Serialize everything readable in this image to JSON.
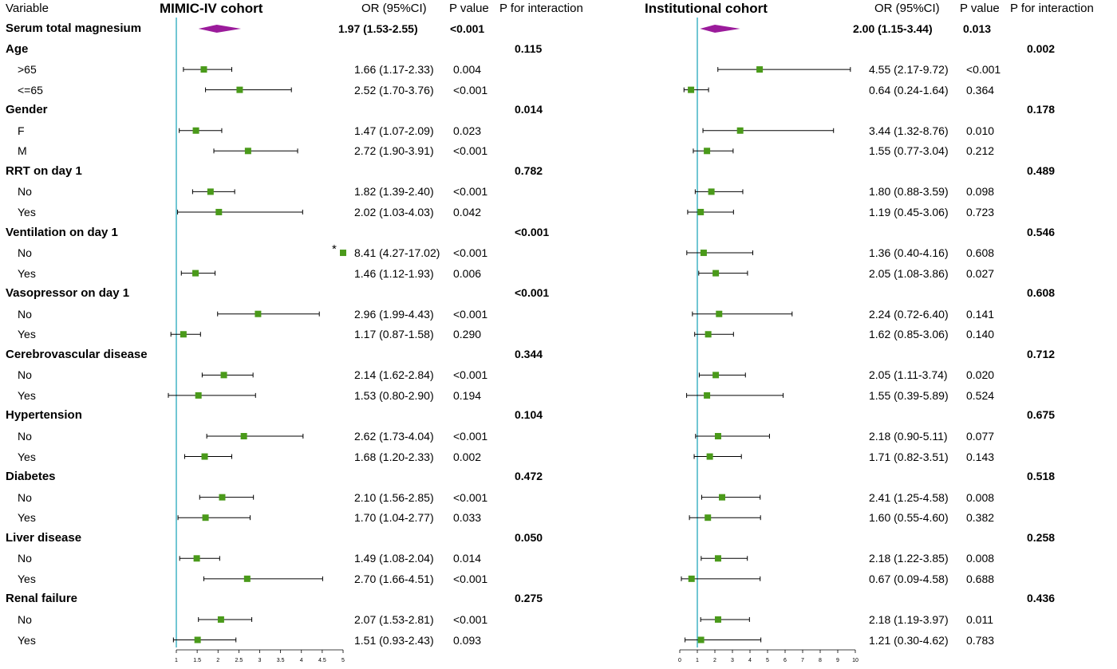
{
  "headers": {
    "variable": "Variable",
    "left_cohort": "MIMIC-IV cohort",
    "right_cohort": "Institutional cohort",
    "or": "OR (95%CI)",
    "pvalue": "P value",
    "pint": "P for interaction"
  },
  "colors": {
    "ref_line": "#4db8c8",
    "square": "#4a9a1a",
    "diamond": "#9b1b9b",
    "ci": "#000000"
  },
  "annotation": {
    "star": "*"
  },
  "chart_data": [
    {
      "type": "forest",
      "title": "MIMIC-IV cohort",
      "ref": 1,
      "xlim": [
        1,
        5
      ],
      "ticks": [
        1,
        1.5,
        2,
        2.5,
        3,
        3.5,
        4,
        4.5,
        5
      ],
      "tick_labels": [
        "1",
        "1.5",
        "2",
        "2.5",
        "3",
        "3.5",
        "4",
        "4.5",
        "5"
      ],
      "rows": [
        {
          "label": "Serum total magnesium",
          "kind": "overall",
          "or": 1.97,
          "lo": 1.53,
          "hi": 2.55,
          "ci_text": "1.97 (1.53-2.55)",
          "p": "<0.001",
          "p_int": ""
        },
        {
          "label": "Age",
          "kind": "group",
          "p_int": "0.115"
        },
        {
          "label": ">65",
          "kind": "sub",
          "or": 1.66,
          "lo": 1.17,
          "hi": 2.33,
          "ci_text": "1.66 (1.17-2.33)",
          "p": "0.004"
        },
        {
          "label": "<=65",
          "kind": "sub",
          "or": 2.52,
          "lo": 1.7,
          "hi": 3.76,
          "ci_text": "2.52 (1.70-3.76)",
          "p": "<0.001"
        },
        {
          "label": "Gender",
          "kind": "group",
          "p_int": "0.014"
        },
        {
          "label": "F",
          "kind": "sub",
          "or": 1.47,
          "lo": 1.07,
          "hi": 2.09,
          "ci_text": "1.47 (1.07-2.09)",
          "p": "0.023"
        },
        {
          "label": "M",
          "kind": "sub",
          "or": 2.72,
          "lo": 1.9,
          "hi": 3.91,
          "ci_text": "2.72 (1.90-3.91)",
          "p": "<0.001"
        },
        {
          "label": "RRT on day 1",
          "kind": "group",
          "p_int": "0.782"
        },
        {
          "label": "No",
          "kind": "sub",
          "or": 1.82,
          "lo": 1.39,
          "hi": 2.4,
          "ci_text": "1.82 (1.39-2.40)",
          "p": "<0.001"
        },
        {
          "label": "Yes",
          "kind": "sub",
          "or": 2.02,
          "lo": 1.03,
          "hi": 4.03,
          "ci_text": "2.02 (1.03-4.03)",
          "p": "0.042"
        },
        {
          "label": "Ventilation on day 1",
          "kind": "group",
          "p_int": "<0.001"
        },
        {
          "label": "No",
          "kind": "sub",
          "or": 8.41,
          "lo": 4.27,
          "hi": 17.02,
          "ci_text": "8.41 (4.27-17.02)",
          "p": "<0.001",
          "off_scale": true
        },
        {
          "label": "Yes",
          "kind": "sub",
          "or": 1.46,
          "lo": 1.12,
          "hi": 1.93,
          "ci_text": "1.46 (1.12-1.93)",
          "p": "0.006"
        },
        {
          "label": "Vasopressor on day 1",
          "kind": "group",
          "p_int": "<0.001"
        },
        {
          "label": "No",
          "kind": "sub",
          "or": 2.96,
          "lo": 1.99,
          "hi": 4.43,
          "ci_text": "2.96 (1.99-4.43)",
          "p": "<0.001"
        },
        {
          "label": "Yes",
          "kind": "sub",
          "or": 1.17,
          "lo": 0.87,
          "hi": 1.58,
          "ci_text": "1.17 (0.87-1.58)",
          "p": "0.290"
        },
        {
          "label": "Cerebrovascular disease",
          "kind": "group",
          "p_int": "0.344"
        },
        {
          "label": "No",
          "kind": "sub",
          "or": 2.14,
          "lo": 1.62,
          "hi": 2.84,
          "ci_text": "2.14 (1.62-2.84)",
          "p": "<0.001"
        },
        {
          "label": "Yes",
          "kind": "sub",
          "or": 1.53,
          "lo": 0.8,
          "hi": 2.9,
          "ci_text": "1.53 (0.80-2.90)",
          "p": "0.194"
        },
        {
          "label": "Hypertension",
          "kind": "group",
          "p_int": "0.104"
        },
        {
          "label": "No",
          "kind": "sub",
          "or": 2.62,
          "lo": 1.73,
          "hi": 4.04,
          "ci_text": "2.62 (1.73-4.04)",
          "p": "<0.001"
        },
        {
          "label": "Yes",
          "kind": "sub",
          "or": 1.68,
          "lo": 1.2,
          "hi": 2.33,
          "ci_text": "1.68 (1.20-2.33)",
          "p": "0.002"
        },
        {
          "label": "Diabetes",
          "kind": "group",
          "p_int": "0.472"
        },
        {
          "label": "No",
          "kind": "sub",
          "or": 2.1,
          "lo": 1.56,
          "hi": 2.85,
          "ci_text": "2.10 (1.56-2.85)",
          "p": "<0.001"
        },
        {
          "label": "Yes",
          "kind": "sub",
          "or": 1.7,
          "lo": 1.04,
          "hi": 2.77,
          "ci_text": "1.70 (1.04-2.77)",
          "p": "0.033"
        },
        {
          "label": "Liver disease",
          "kind": "group",
          "p_int": "0.050"
        },
        {
          "label": "No",
          "kind": "sub",
          "or": 1.49,
          "lo": 1.08,
          "hi": 2.04,
          "ci_text": "1.49 (1.08-2.04)",
          "p": "0.014"
        },
        {
          "label": "Yes",
          "kind": "sub",
          "or": 2.7,
          "lo": 1.66,
          "hi": 4.51,
          "ci_text": "2.70 (1.66-4.51)",
          "p": "<0.001"
        },
        {
          "label": "Renal failure",
          "kind": "group",
          "p_int": "0.275"
        },
        {
          "label": "No",
          "kind": "sub",
          "or": 2.07,
          "lo": 1.53,
          "hi": 2.81,
          "ci_text": "2.07 (1.53-2.81)",
          "p": "<0.001"
        },
        {
          "label": "Yes",
          "kind": "sub",
          "or": 1.51,
          "lo": 0.93,
          "hi": 2.43,
          "ci_text": "1.51 (0.93-2.43)",
          "p": "0.093"
        }
      ]
    },
    {
      "type": "forest",
      "title": "Institutional cohort",
      "ref": 1,
      "xlim": [
        0,
        10
      ],
      "ticks": [
        0,
        1,
        2,
        3,
        4,
        5,
        6,
        7,
        8,
        9,
        10
      ],
      "tick_labels": [
        "0",
        "1",
        "2",
        "3",
        "4",
        "5",
        "6",
        "7",
        "8",
        "9",
        "10"
      ],
      "rows": [
        {
          "label": "Serum total magnesium",
          "kind": "overall",
          "or": 2.0,
          "lo": 1.15,
          "hi": 3.44,
          "ci_text": "2.00 (1.15-3.44)",
          "p": "0.013",
          "p_int": ""
        },
        {
          "label": "Age",
          "kind": "group",
          "p_int": "0.002"
        },
        {
          "label": ">65",
          "kind": "sub",
          "or": 4.55,
          "lo": 2.17,
          "hi": 9.72,
          "ci_text": "4.55 (2.17-9.72)",
          "p": "<0.001"
        },
        {
          "label": "<=65",
          "kind": "sub",
          "or": 0.64,
          "lo": 0.24,
          "hi": 1.64,
          "ci_text": "0.64 (0.24-1.64)",
          "p": "0.364"
        },
        {
          "label": "Gender",
          "kind": "group",
          "p_int": "0.178"
        },
        {
          "label": "F",
          "kind": "sub",
          "or": 3.44,
          "lo": 1.32,
          "hi": 8.76,
          "ci_text": "3.44 (1.32-8.76)",
          "p": "0.010"
        },
        {
          "label": "M",
          "kind": "sub",
          "or": 1.55,
          "lo": 0.77,
          "hi": 3.04,
          "ci_text": "1.55 (0.77-3.04)",
          "p": "0.212"
        },
        {
          "label": "RRT on day 1",
          "kind": "group",
          "p_int": "0.489"
        },
        {
          "label": "No",
          "kind": "sub",
          "or": 1.8,
          "lo": 0.88,
          "hi": 3.59,
          "ci_text": "1.80 (0.88-3.59)",
          "p": "0.098"
        },
        {
          "label": "Yes",
          "kind": "sub",
          "or": 1.19,
          "lo": 0.45,
          "hi": 3.06,
          "ci_text": "1.19 (0.45-3.06)",
          "p": "0.723"
        },
        {
          "label": "Ventilation on day 1",
          "kind": "group",
          "p_int": "0.546"
        },
        {
          "label": "No",
          "kind": "sub",
          "or": 1.36,
          "lo": 0.4,
          "hi": 4.16,
          "ci_text": "1.36 (0.40-4.16)",
          "p": "0.608"
        },
        {
          "label": "Yes",
          "kind": "sub",
          "or": 2.05,
          "lo": 1.08,
          "hi": 3.86,
          "ci_text": "2.05 (1.08-3.86)",
          "p": "0.027"
        },
        {
          "label": "Vasopressor on day 1",
          "kind": "group",
          "p_int": "0.608"
        },
        {
          "label": "No",
          "kind": "sub",
          "or": 2.24,
          "lo": 0.72,
          "hi": 6.4,
          "ci_text": "2.24 (0.72-6.40)",
          "p": "0.141"
        },
        {
          "label": "Yes",
          "kind": "sub",
          "or": 1.62,
          "lo": 0.85,
          "hi": 3.06,
          "ci_text": "1.62 (0.85-3.06)",
          "p": "0.140"
        },
        {
          "label": "Cerebrovascular disease",
          "kind": "group",
          "p_int": "0.712"
        },
        {
          "label": "No",
          "kind": "sub",
          "or": 2.05,
          "lo": 1.11,
          "hi": 3.74,
          "ci_text": "2.05 (1.11-3.74)",
          "p": "0.020"
        },
        {
          "label": "Yes",
          "kind": "sub",
          "or": 1.55,
          "lo": 0.39,
          "hi": 5.89,
          "ci_text": "1.55 (0.39-5.89)",
          "p": "0.524"
        },
        {
          "label": "Hypertension",
          "kind": "group",
          "p_int": "0.675"
        },
        {
          "label": "No",
          "kind": "sub",
          "or": 2.18,
          "lo": 0.9,
          "hi": 5.11,
          "ci_text": "2.18 (0.90-5.11)",
          "p": "0.077"
        },
        {
          "label": "Yes",
          "kind": "sub",
          "or": 1.71,
          "lo": 0.82,
          "hi": 3.51,
          "ci_text": "1.71 (0.82-3.51)",
          "p": "0.143"
        },
        {
          "label": "Diabetes",
          "kind": "group",
          "p_int": "0.518"
        },
        {
          "label": "No",
          "kind": "sub",
          "or": 2.41,
          "lo": 1.25,
          "hi": 4.58,
          "ci_text": "2.41 (1.25-4.58)",
          "p": "0.008"
        },
        {
          "label": "Yes",
          "kind": "sub",
          "or": 1.6,
          "lo": 0.55,
          "hi": 4.6,
          "ci_text": "1.60 (0.55-4.60)",
          "p": "0.382"
        },
        {
          "label": "Liver disease",
          "kind": "group",
          "p_int": "0.258"
        },
        {
          "label": "No",
          "kind": "sub",
          "or": 2.18,
          "lo": 1.22,
          "hi": 3.85,
          "ci_text": "2.18 (1.22-3.85)",
          "p": "0.008"
        },
        {
          "label": "Yes",
          "kind": "sub",
          "or": 0.67,
          "lo": 0.09,
          "hi": 4.58,
          "ci_text": "0.67 (0.09-4.58)",
          "p": "0.688"
        },
        {
          "label": "Renal failure",
          "kind": "group",
          "p_int": "0.436"
        },
        {
          "label": "No",
          "kind": "sub",
          "or": 2.18,
          "lo": 1.19,
          "hi": 3.97,
          "ci_text": "2.18 (1.19-3.97)",
          "p": "0.011"
        },
        {
          "label": "Yes",
          "kind": "sub",
          "or": 1.21,
          "lo": 0.3,
          "hi": 4.62,
          "ci_text": "1.21 (0.30-4.62)",
          "p": "0.783"
        }
      ]
    }
  ]
}
